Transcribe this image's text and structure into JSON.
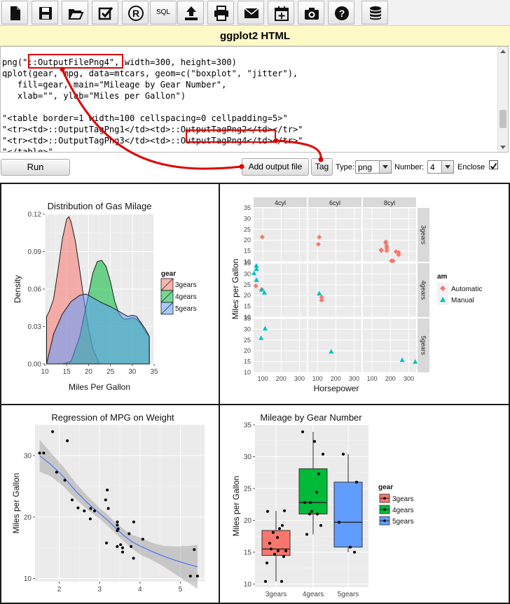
{
  "toolbar": {
    "buttons": [
      {
        "icon": "new-file-icon"
      },
      {
        "icon": "save-icon"
      },
      {
        "icon": "open-folder-icon"
      },
      {
        "icon": "checkbox-icon"
      },
      {
        "icon": "r-logo-icon"
      },
      {
        "icon": "sql-icon",
        "label": "SQL"
      },
      {
        "icon": "upload-icon"
      },
      {
        "icon": "print-icon"
      },
      {
        "icon": "email-icon"
      },
      {
        "icon": "calendar-add-icon"
      },
      {
        "icon": "camera-icon"
      },
      {
        "icon": "help-icon"
      },
      {
        "icon": "database-icon"
      }
    ]
  },
  "title": "ggplot2 HTML",
  "editor": {
    "lines": [
      "png(\"::OutputFilePng4\", width=300, height=300)",
      "qplot(gear, mpg, data=mtcars, geom=c(\"boxplot\", \"jitter\"),",
      "   fill=gear, main=\"Mileage by Gear Number\",",
      "   xlab=\"\", ylab=\"Miles per Gallon\")",
      "",
      "\"<table border=1 width=100 cellspacing=0 cellpadding=5>\"",
      "\"<tr><td>::OutputTagPng1</td><td>::OutputTagPng2</td></tr>\"",
      "\"<tr><td>::OutputTagPng3</td><td>::OutputTagPng4</td></tr>\"",
      "\"</table>\""
    ]
  },
  "controls": {
    "run_label": "Run",
    "add_output_label": "Add output file",
    "tag_label": "Tag",
    "type_label": "Type:",
    "type_value": "png",
    "number_label": "Number:",
    "number_value": "4",
    "enclose_label": "Enclose",
    "enclose_checked": true
  },
  "colors": {
    "red": "#f8766d",
    "green": "#00ba38",
    "blue": "#619cff",
    "teal": "#00bfc4",
    "panel_bg": "#ebebeb",
    "annotation": "#e00000"
  },
  "chart_data": [
    {
      "type": "area",
      "title": "Distribution of Gas Milage",
      "xlabel": "Miles Per Gallon",
      "ylabel": "Density",
      "xlim": [
        10,
        35
      ],
      "ylim": [
        0,
        0.12
      ],
      "xticks": [
        10,
        15,
        20,
        25,
        30,
        35
      ],
      "yticks": [
        0.0,
        0.03,
        0.06,
        0.09,
        0.12
      ],
      "ytick_labels": [
        "0.00",
        "0.03",
        "0.06",
        "0.09",
        "0.12"
      ],
      "legend_title": "gear",
      "legend_position": "right",
      "series": [
        {
          "name": "3gears",
          "x": [
            10.4,
            11.0,
            12.0,
            13.0,
            14.0,
            15.0,
            15.5,
            16.0,
            17.0,
            18.0,
            19.0,
            20.0,
            21.0,
            22.0,
            22.5
          ],
          "y": [
            0.038,
            0.042,
            0.052,
            0.075,
            0.1,
            0.116,
            0.118,
            0.114,
            0.098,
            0.075,
            0.05,
            0.028,
            0.012,
            0.004,
            0.0
          ]
        },
        {
          "name": "4gears",
          "x": [
            10.4,
            12.0,
            14.0,
            16.0,
            18.0,
            20.0,
            21.0,
            22.0,
            23.0,
            24.0,
            25.0,
            26.0,
            27.0,
            28.0,
            29.0,
            30.0,
            31.0,
            32.0,
            33.0,
            33.9
          ],
          "y": [
            0.0,
            0.0,
            0.0,
            0.002,
            0.022,
            0.056,
            0.073,
            0.082,
            0.083,
            0.078,
            0.066,
            0.05,
            0.04,
            0.036,
            0.036,
            0.037,
            0.036,
            0.032,
            0.026,
            0.022
          ]
        },
        {
          "name": "5gears",
          "x": [
            10.4,
            12.0,
            14.0,
            16.0,
            18.0,
            19.5,
            21.0,
            23.0,
            25.0,
            26.0,
            27.0,
            28.0,
            29.0,
            30.0,
            31.0,
            32.0,
            33.0,
            33.9
          ],
          "y": [
            0.0,
            0.024,
            0.04,
            0.05,
            0.055,
            0.056,
            0.053,
            0.049,
            0.046,
            0.044,
            0.042,
            0.04,
            0.038,
            0.039,
            0.038,
            0.033,
            0.028,
            0.022
          ]
        }
      ]
    },
    {
      "type": "scatter",
      "xlabel": "Horsepower",
      "ylabel": "Miles per Gallon",
      "facet_cols": [
        "4cyl",
        "6cyl",
        "8cyl"
      ],
      "facet_rows": [
        "3gears",
        "4gears",
        "5gears"
      ],
      "xlim": [
        50,
        340
      ],
      "ylim": [
        10,
        35
      ],
      "xticks": [
        100,
        200,
        300
      ],
      "yticks": [
        10,
        15,
        20,
        25,
        30,
        35
      ],
      "legend_title": "am",
      "legend_position": "right",
      "series": [
        {
          "name": "Automatic",
          "points": [
            {
              "col": 0,
              "row": 0,
              "x": 97,
              "y": 21.5
            },
            {
              "col": 1,
              "row": 0,
              "x": 110,
              "y": 21.4
            },
            {
              "col": 1,
              "row": 0,
              "x": 105,
              "y": 18.1
            },
            {
              "col": 2,
              "row": 0,
              "x": 175,
              "y": 18.7
            },
            {
              "col": 2,
              "row": 0,
              "x": 245,
              "y": 14.3
            },
            {
              "col": 2,
              "row": 0,
              "x": 180,
              "y": 16.4
            },
            {
              "col": 2,
              "row": 0,
              "x": 180,
              "y": 17.3
            },
            {
              "col": 2,
              "row": 0,
              "x": 180,
              "y": 15.2
            },
            {
              "col": 2,
              "row": 0,
              "x": 205,
              "y": 10.4
            },
            {
              "col": 2,
              "row": 0,
              "x": 215,
              "y": 10.4
            },
            {
              "col": 2,
              "row": 0,
              "x": 230,
              "y": 14.7
            },
            {
              "col": 2,
              "row": 0,
              "x": 150,
              "y": 15.5
            },
            {
              "col": 2,
              "row": 0,
              "x": 150,
              "y": 15.2
            },
            {
              "col": 2,
              "row": 0,
              "x": 245,
              "y": 13.3
            },
            {
              "col": 2,
              "row": 0,
              "x": 175,
              "y": 19.2
            },
            {
              "col": 0,
              "row": 1,
              "x": 62,
              "y": 24.4
            },
            {
              "col": 0,
              "row": 1,
              "x": 95,
              "y": 22.8
            },
            {
              "col": 1,
              "row": 1,
              "x": 123,
              "y": 19.2
            },
            {
              "col": 1,
              "row": 1,
              "x": 123,
              "y": 17.8
            }
          ]
        },
        {
          "name": "Manual",
          "points": [
            {
              "col": 0,
              "row": 1,
              "x": 93,
              "y": 22.8
            },
            {
              "col": 0,
              "row": 1,
              "x": 66,
              "y": 32.4
            },
            {
              "col": 0,
              "row": 1,
              "x": 52,
              "y": 30.4
            },
            {
              "col": 0,
              "row": 1,
              "x": 65,
              "y": 33.9
            },
            {
              "col": 0,
              "row": 1,
              "x": 66,
              "y": 27.3
            },
            {
              "col": 0,
              "row": 1,
              "x": 109,
              "y": 21.4
            },
            {
              "col": 1,
              "row": 1,
              "x": 110,
              "y": 21.0
            },
            {
              "col": 1,
              "row": 1,
              "x": 110,
              "y": 21.0
            },
            {
              "col": 0,
              "row": 2,
              "x": 91,
              "y": 26.0
            },
            {
              "col": 0,
              "row": 2,
              "x": 113,
              "y": 30.4
            },
            {
              "col": 1,
              "row": 2,
              "x": 175,
              "y": 19.7
            },
            {
              "col": 2,
              "row": 2,
              "x": 264,
              "y": 15.8
            },
            {
              "col": 2,
              "row": 2,
              "x": 335,
              "y": 15.0
            }
          ]
        }
      ]
    },
    {
      "type": "scatter",
      "title": "Regression of MPG on Weight",
      "xlabel": "",
      "ylabel": "Miles per Gallon",
      "xlim": [
        1.4,
        5.6
      ],
      "ylim": [
        9.5,
        35
      ],
      "xticks": [
        2,
        3,
        4,
        5
      ],
      "yticks": [
        10,
        20,
        30
      ],
      "points": [
        [
          2.62,
          21.0
        ],
        [
          2.875,
          21.0
        ],
        [
          2.32,
          22.8
        ],
        [
          3.215,
          21.4
        ],
        [
          3.44,
          18.7
        ],
        [
          3.46,
          18.1
        ],
        [
          3.57,
          14.3
        ],
        [
          3.19,
          24.4
        ],
        [
          3.15,
          22.8
        ],
        [
          3.44,
          19.2
        ],
        [
          3.44,
          17.8
        ],
        [
          4.07,
          16.4
        ],
        [
          3.73,
          17.3
        ],
        [
          3.78,
          15.2
        ],
        [
          5.25,
          10.4
        ],
        [
          5.424,
          10.4
        ],
        [
          5.345,
          14.7
        ],
        [
          2.2,
          32.4
        ],
        [
          1.615,
          30.4
        ],
        [
          1.835,
          33.9
        ],
        [
          2.465,
          21.5
        ],
        [
          3.52,
          15.5
        ],
        [
          3.435,
          15.2
        ],
        [
          3.84,
          13.3
        ],
        [
          3.845,
          19.2
        ],
        [
          1.935,
          27.3
        ],
        [
          2.14,
          26.0
        ],
        [
          1.513,
          30.4
        ],
        [
          3.17,
          15.8
        ],
        [
          2.77,
          19.7
        ],
        [
          3.57,
          15.0
        ],
        [
          2.78,
          21.4
        ]
      ],
      "fit": {
        "x": [
          1.513,
          1.8,
          2.1,
          2.4,
          2.7,
          3.0,
          3.2,
          3.4,
          3.6,
          3.8,
          4.0,
          4.3,
          4.6,
          4.9,
          5.2,
          5.424
        ],
        "y": [
          30.0,
          28.5,
          26.6,
          24.3,
          22.3,
          20.6,
          19.5,
          18.2,
          17.0,
          16.0,
          15.3,
          14.4,
          13.6,
          12.9,
          12.3,
          11.9
        ],
        "se": [
          2.6,
          1.9,
          1.6,
          1.3,
          1.1,
          0.9,
          0.9,
          0.9,
          1.0,
          1.1,
          1.4,
          1.4,
          1.7,
          2.3,
          3.0,
          3.6
        ]
      }
    },
    {
      "type": "boxplot",
      "title": "Mileage by Gear Number",
      "xlabel": "",
      "ylabel": "Miles per Gallon",
      "categories": [
        "3gears",
        "4gears",
        "5gears"
      ],
      "ylim": [
        9.5,
        35
      ],
      "yticks": [
        10,
        15,
        20,
        25,
        30,
        35
      ],
      "legend_title": "gear",
      "legend_position": "right",
      "boxes": [
        {
          "name": "3gears",
          "q1": 14.5,
          "median": 15.5,
          "q3": 18.4,
          "low": 10.4,
          "high": 21.5
        },
        {
          "name": "4gears",
          "q1": 21.0,
          "median": 22.8,
          "q3": 28.1,
          "low": 17.8,
          "high": 33.9
        },
        {
          "name": "5gears",
          "q1": 15.8,
          "median": 19.7,
          "q3": 26.0,
          "low": 15.0,
          "high": 30.4
        }
      ],
      "points": [
        [
          0,
          21.4
        ],
        [
          0,
          18.7
        ],
        [
          0,
          18.1
        ],
        [
          0,
          14.3
        ],
        [
          0,
          16.4
        ],
        [
          0,
          17.3
        ],
        [
          0,
          15.2
        ],
        [
          0,
          10.4
        ],
        [
          0,
          10.4
        ],
        [
          0,
          14.7
        ],
        [
          0,
          21.5
        ],
        [
          0,
          15.5
        ],
        [
          0,
          15.2
        ],
        [
          0,
          13.3
        ],
        [
          0,
          19.2
        ],
        [
          1,
          21.0
        ],
        [
          1,
          21.0
        ],
        [
          1,
          22.8
        ],
        [
          1,
          24.4
        ],
        [
          1,
          22.8
        ],
        [
          1,
          19.2
        ],
        [
          1,
          17.8
        ],
        [
          1,
          32.4
        ],
        [
          1,
          30.4
        ],
        [
          1,
          33.9
        ],
        [
          1,
          27.3
        ],
        [
          1,
          21.4
        ],
        [
          2,
          26.0
        ],
        [
          2,
          30.4
        ],
        [
          2,
          15.8
        ],
        [
          2,
          19.7
        ],
        [
          2,
          15.0
        ]
      ]
    }
  ]
}
